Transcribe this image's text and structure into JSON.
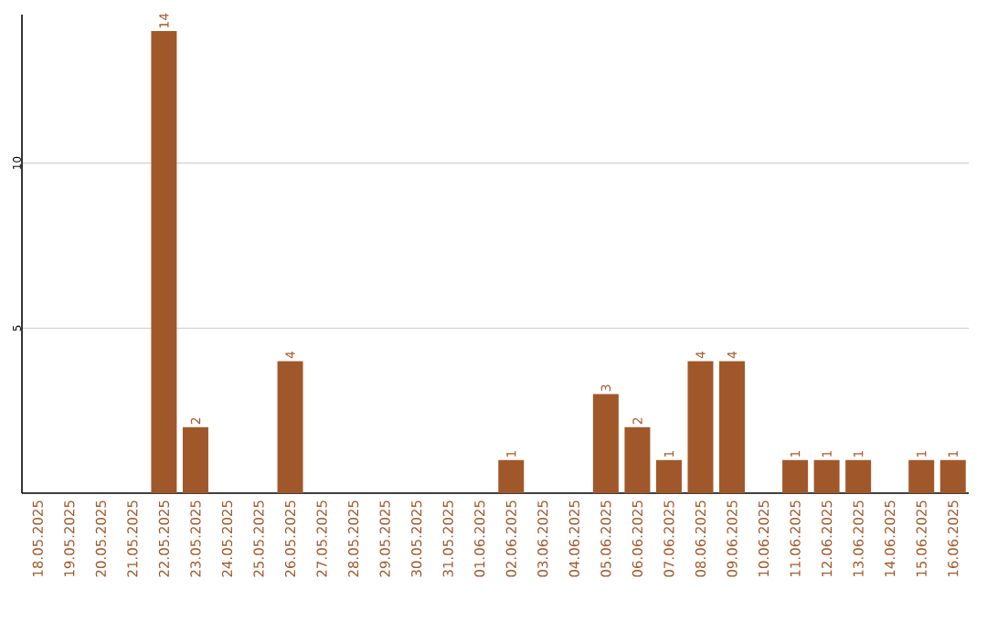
{
  "chart_data": {
    "type": "bar",
    "categories": [
      "18.05.2025",
      "19.05.2025",
      "20.05.2025",
      "21.05.2025",
      "22.05.2025",
      "23.05.2025",
      "24.05.2025",
      "25.05.2025",
      "26.05.2025",
      "27.05.2025",
      "28.05.2025",
      "29.05.2025",
      "30.05.2025",
      "31.05.2025",
      "01.06.2025",
      "02.06.2025",
      "03.06.2025",
      "04.06.2025",
      "05.06.2025",
      "06.06.2025",
      "07.06.2025",
      "08.06.2025",
      "09.06.2025",
      "10.06.2025",
      "11.06.2025",
      "12.06.2025",
      "13.06.2025",
      "14.06.2025",
      "15.06.2025",
      "16.06.2025"
    ],
    "values": [
      0,
      0,
      0,
      0,
      14,
      2,
      0,
      0,
      4,
      0,
      0,
      0,
      0,
      0,
      0,
      1,
      0,
      0,
      3,
      2,
      1,
      4,
      4,
      0,
      1,
      1,
      1,
      0,
      1,
      1
    ],
    "value_labels": [
      null,
      null,
      null,
      null,
      "14",
      "2",
      null,
      null,
      "4",
      null,
      null,
      null,
      null,
      null,
      null,
      "1",
      null,
      null,
      "3",
      "2",
      "1",
      "4",
      "4",
      null,
      "1",
      "1",
      "1",
      null,
      "1",
      "1"
    ],
    "color": "#a0582a",
    "ylim": [
      0,
      14.5
    ],
    "yticks": [
      5,
      10
    ],
    "grid": "y"
  }
}
